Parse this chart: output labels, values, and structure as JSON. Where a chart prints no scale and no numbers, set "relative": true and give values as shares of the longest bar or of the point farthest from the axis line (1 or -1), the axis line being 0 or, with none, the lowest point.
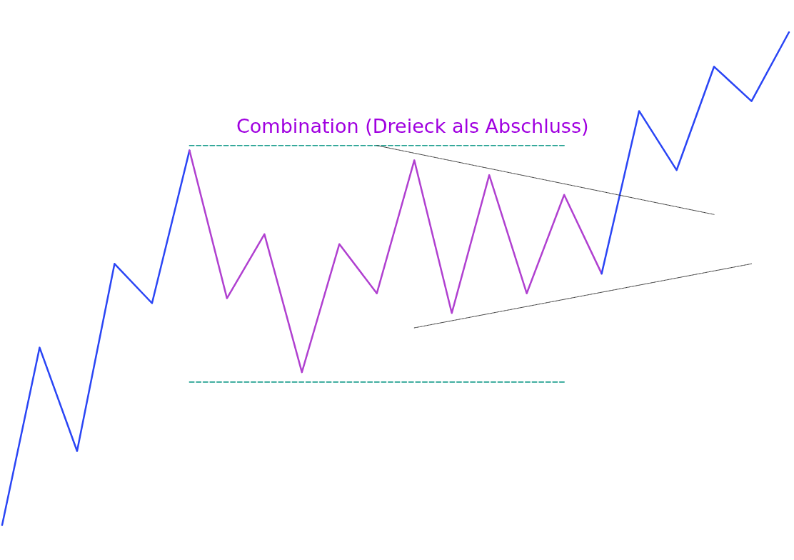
{
  "chart_data": {
    "type": "line",
    "title": "Combination (Dreieck als Abschluss)",
    "relative": true,
    "marker": "none",
    "categories": [
      null,
      null,
      null,
      null,
      null,
      null,
      null,
      null,
      null,
      null,
      null,
      null,
      null,
      null,
      null,
      null,
      null,
      null,
      null,
      null,
      null,
      null
    ],
    "series": [
      {
        "color": "#2a45f5",
        "values": [
          0,
          0.36,
          0.15,
          0.53,
          0.45,
          0.76,
          null,
          null,
          null,
          null,
          null,
          null,
          null,
          null,
          null,
          null,
          null,
          null,
          null,
          null,
          null,
          null
        ]
      },
      {
        "color": "#b040d0",
        "values": [
          null,
          null,
          null,
          null,
          null,
          0.76,
          0.46,
          0.59,
          0.31,
          0.57,
          0.47,
          0.74,
          0.43,
          0.71,
          0.47,
          0.67,
          0.51,
          null,
          null,
          null,
          null,
          null
        ]
      },
      {
        "color": "#2a45f5",
        "values": [
          null,
          null,
          null,
          null,
          null,
          null,
          null,
          null,
          null,
          null,
          null,
          null,
          null,
          null,
          null,
          null,
          0.51,
          0.84,
          0.72,
          0.93,
          0.86,
          1
        ]
      },
      {
        "color": "#20a090",
        "line_style": "dashed",
        "values": [
          null,
          null,
          null,
          null,
          null,
          0.77,
          null,
          null,
          null,
          null,
          null,
          null,
          null,
          null,
          null,
          0.77,
          null,
          null,
          null,
          null,
          null,
          null
        ]
      },
      {
        "color": "#20a090",
        "line_style": "dashed",
        "values": [
          null,
          null,
          null,
          null,
          null,
          0.29,
          null,
          null,
          null,
          null,
          null,
          null,
          null,
          null,
          null,
          0.29,
          null,
          null,
          null,
          null,
          null,
          null
        ]
      },
      {
        "color": "#333333",
        "line_style": "dotted",
        "values": [
          null,
          null,
          null,
          null,
          null,
          null,
          null,
          null,
          null,
          null,
          0.77,
          null,
          null,
          null,
          null,
          null,
          null,
          null,
          null,
          0.63,
          null,
          null
        ]
      },
      {
        "color": "#333333",
        "line_style": "dotted",
        "values": [
          null,
          null,
          null,
          null,
          null,
          null,
          null,
          null,
          null,
          null,
          null,
          0.4,
          null,
          null,
          null,
          null,
          null,
          null,
          null,
          null,
          0.53,
          null
        ]
      }
    ]
  }
}
